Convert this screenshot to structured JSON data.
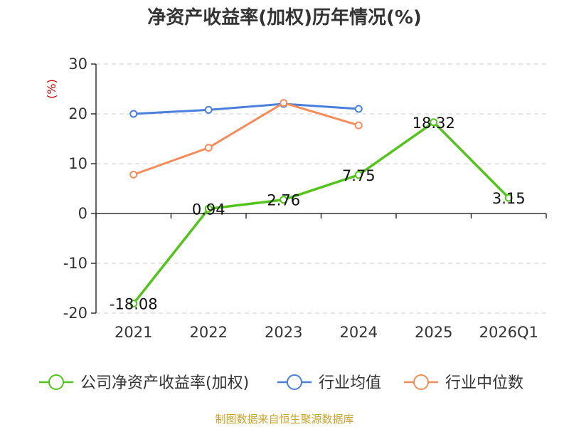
{
  "chart_data": {
    "type": "line",
    "title": "净资产收益率(加权)历年情况(%)",
    "ylabel": "(%)",
    "xlabel": "",
    "categories": [
      "2021",
      "2022",
      "2023",
      "2024",
      "2025",
      "2026Q1"
    ],
    "ylim": [
      -20,
      30
    ],
    "yticks": [
      "30",
      "20",
      "10",
      "0",
      "-10",
      "-20"
    ],
    "grid": true,
    "legend_position": "bottom",
    "series": [
      {
        "name": "公司净资产收益率(加权)",
        "color": "#52c41a",
        "values": [
          -18.08,
          0.94,
          2.76,
          7.75,
          18.32,
          3.15
        ],
        "labels": [
          "-18.08",
          "0.94",
          "2.76",
          "7.75",
          "18.32",
          "3.15"
        ]
      },
      {
        "name": "行业均值",
        "color": "#4a7fdc",
        "values": [
          20.0,
          20.8,
          22.0,
          21.0,
          null,
          null
        ]
      },
      {
        "name": "行业中位数",
        "color": "#f58c5a",
        "values": [
          7.8,
          13.2,
          22.2,
          17.7,
          null,
          null
        ]
      }
    ]
  },
  "footer": {
    "source": "制图数据来自恒生聚源数据库"
  }
}
